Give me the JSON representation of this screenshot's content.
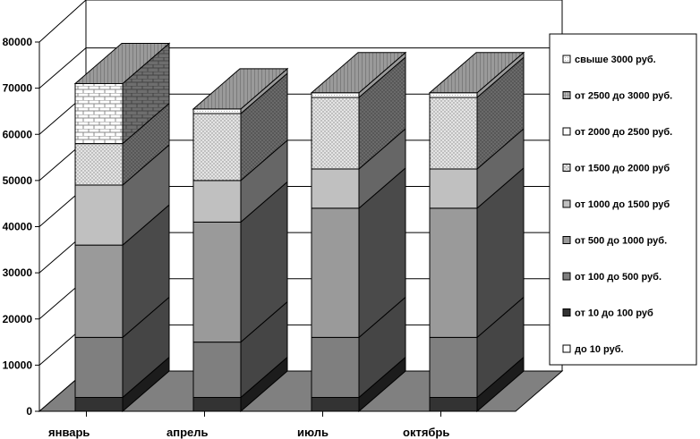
{
  "chart_data": {
    "type": "bar",
    "stacked": true,
    "three_d": true,
    "categories": [
      "январь",
      "апрель",
      "июль",
      "октябрь"
    ],
    "ylim": [
      0,
      80000
    ],
    "yticks": [
      0,
      10000,
      20000,
      30000,
      40000,
      50000,
      60000,
      70000,
      80000
    ],
    "ytick_labels": [
      "0",
      "10000",
      "20000",
      "30000",
      "40000",
      "50000",
      "60000",
      "70000",
      "80000"
    ],
    "grid": true,
    "legend_position": "right",
    "series": [
      {
        "name": "до 10 руб.",
        "values": [
          0,
          0,
          0,
          0
        ],
        "color": "#ffffff"
      },
      {
        "name": "от 10 до 100 руб",
        "values": [
          3000,
          3000,
          3000,
          3000
        ],
        "color": "#333333"
      },
      {
        "name": "от 100 до 500 руб.",
        "values": [
          13000,
          12000,
          13000,
          13000
        ],
        "color": "#7f7f7f"
      },
      {
        "name": "от 500 до 1000 руб.",
        "values": [
          20000,
          26000,
          28000,
          28000
        ],
        "color": "#9a9a9a"
      },
      {
        "name": "от 1000 до 1500 руб",
        "values": [
          13000,
          9000,
          8500,
          8500
        ],
        "color": "#c0c0c0"
      },
      {
        "name": "от 1500 до 2000 руб",
        "values": [
          9000,
          0,
          0,
          0
        ],
        "color": "#d4d4d4"
      },
      {
        "name": "от 2000 до 2500 руб.",
        "values": [
          0,
          14500,
          15500,
          15500
        ],
        "color": "#d4d4d4"
      },
      {
        "name": "от 2500 до 3000 руб.",
        "values": [
          0,
          0,
          0,
          0
        ],
        "color": "#b4b4b4"
      },
      {
        "name": "свыше 3000 руб.",
        "values": [
          13000,
          1000,
          1000,
          1000
        ],
        "color": "#ffffff"
      }
    ],
    "legend_order": [
      8,
      7,
      6,
      5,
      4,
      3,
      2,
      1,
      0
    ]
  }
}
